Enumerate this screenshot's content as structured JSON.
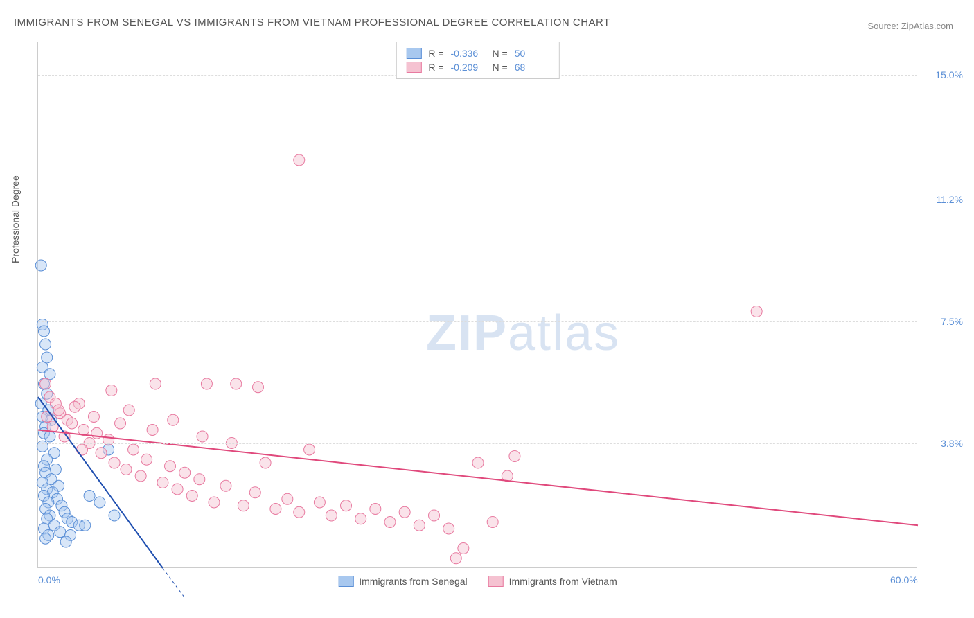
{
  "title": "IMMIGRANTS FROM SENEGAL VS IMMIGRANTS FROM VIETNAM PROFESSIONAL DEGREE CORRELATION CHART",
  "source": "Source: ZipAtlas.com",
  "y_axis_label": "Professional Degree",
  "watermark_zip": "ZIP",
  "watermark_atlas": "atlas",
  "chart": {
    "type": "scatter",
    "xlim": [
      0,
      60
    ],
    "ylim": [
      0,
      16
    ],
    "x_ticks": [
      {
        "value": 0,
        "label": "0.0%"
      },
      {
        "value": 60,
        "label": "60.0%"
      }
    ],
    "y_ticks": [
      {
        "value": 3.8,
        "label": "3.8%"
      },
      {
        "value": 7.5,
        "label": "7.5%"
      },
      {
        "value": 11.2,
        "label": "11.2%"
      },
      {
        "value": 15.0,
        "label": "15.0%"
      }
    ],
    "gridlines_y": [
      3.8,
      7.5,
      11.2,
      15.0
    ],
    "background_color": "#ffffff",
    "grid_color": "#dddddd",
    "marker_radius": 8,
    "marker_opacity": 0.45,
    "series": [
      {
        "name": "Immigrants from Senegal",
        "color_fill": "#a8c8ef",
        "color_stroke": "#5b8fd6",
        "line_color": "#1f4fb0",
        "line_width": 2,
        "R": "-0.336",
        "N": "50",
        "trend": {
          "x1": 0,
          "y1": 5.2,
          "x2": 8.5,
          "y2": 0
        },
        "trend_dashed": {
          "x1": 8.5,
          "y1": 0,
          "x2": 10,
          "y2": -0.9
        },
        "points": [
          [
            0.2,
            9.2
          ],
          [
            0.3,
            7.4
          ],
          [
            0.4,
            7.2
          ],
          [
            0.5,
            6.8
          ],
          [
            0.6,
            6.4
          ],
          [
            0.3,
            6.1
          ],
          [
            0.8,
            5.9
          ],
          [
            0.4,
            5.6
          ],
          [
            0.6,
            5.3
          ],
          [
            0.2,
            5.0
          ],
          [
            0.7,
            4.8
          ],
          [
            0.3,
            4.6
          ],
          [
            0.9,
            4.5
          ],
          [
            0.5,
            4.3
          ],
          [
            0.4,
            4.1
          ],
          [
            0.8,
            4.0
          ],
          [
            0.3,
            3.7
          ],
          [
            1.1,
            3.5
          ],
          [
            0.6,
            3.3
          ],
          [
            0.4,
            3.1
          ],
          [
            1.2,
            3.0
          ],
          [
            0.5,
            2.9
          ],
          [
            0.9,
            2.7
          ],
          [
            0.3,
            2.6
          ],
          [
            1.4,
            2.5
          ],
          [
            0.6,
            2.4
          ],
          [
            1.0,
            2.3
          ],
          [
            0.4,
            2.2
          ],
          [
            1.3,
            2.1
          ],
          [
            0.7,
            2.0
          ],
          [
            1.6,
            1.9
          ],
          [
            0.5,
            1.8
          ],
          [
            1.8,
            1.7
          ],
          [
            0.8,
            1.6
          ],
          [
            2.0,
            1.5
          ],
          [
            0.6,
            1.5
          ],
          [
            2.3,
            1.4
          ],
          [
            1.1,
            1.3
          ],
          [
            2.8,
            1.3
          ],
          [
            0.4,
            1.2
          ],
          [
            1.5,
            1.1
          ],
          [
            3.2,
            1.3
          ],
          [
            0.7,
            1.0
          ],
          [
            2.2,
            1.0
          ],
          [
            4.2,
            2.0
          ],
          [
            0.5,
            0.9
          ],
          [
            1.9,
            0.8
          ],
          [
            3.5,
            2.2
          ],
          [
            5.2,
            1.6
          ],
          [
            4.8,
            3.6
          ]
        ]
      },
      {
        "name": "Immigrants from Vietnam",
        "color_fill": "#f5c2d1",
        "color_stroke": "#e87aa0",
        "line_color": "#e0497c",
        "line_width": 2,
        "R": "-0.209",
        "N": "68",
        "trend": {
          "x1": 0,
          "y1": 4.2,
          "x2": 60,
          "y2": 1.3
        },
        "points": [
          [
            0.5,
            5.6
          ],
          [
            0.8,
            5.2
          ],
          [
            1.2,
            5.0
          ],
          [
            1.5,
            4.7
          ],
          [
            2.0,
            4.5
          ],
          [
            2.3,
            4.4
          ],
          [
            2.8,
            5.0
          ],
          [
            3.1,
            4.2
          ],
          [
            3.5,
            3.8
          ],
          [
            4.0,
            4.1
          ],
          [
            4.3,
            3.5
          ],
          [
            4.8,
            3.9
          ],
          [
            5.2,
            3.2
          ],
          [
            5.6,
            4.4
          ],
          [
            6.0,
            3.0
          ],
          [
            6.5,
            3.6
          ],
          [
            7.0,
            2.8
          ],
          [
            7.4,
            3.3
          ],
          [
            8.0,
            5.6
          ],
          [
            8.5,
            2.6
          ],
          [
            9.0,
            3.1
          ],
          [
            9.5,
            2.4
          ],
          [
            10.0,
            2.9
          ],
          [
            10.5,
            2.2
          ],
          [
            11.0,
            2.7
          ],
          [
            11.5,
            5.6
          ],
          [
            12.0,
            2.0
          ],
          [
            12.8,
            2.5
          ],
          [
            13.5,
            5.6
          ],
          [
            14.0,
            1.9
          ],
          [
            14.8,
            2.3
          ],
          [
            15.5,
            3.2
          ],
          [
            16.2,
            1.8
          ],
          [
            17.0,
            2.1
          ],
          [
            17.8,
            1.7
          ],
          [
            18.5,
            3.6
          ],
          [
            19.2,
            2.0
          ],
          [
            20.0,
            1.6
          ],
          [
            21.0,
            1.9
          ],
          [
            22.0,
            1.5
          ],
          [
            23.0,
            1.8
          ],
          [
            24.0,
            1.4
          ],
          [
            25.0,
            1.7
          ],
          [
            26.0,
            1.3
          ],
          [
            27.0,
            1.6
          ],
          [
            28.0,
            1.2
          ],
          [
            29.0,
            0.6
          ],
          [
            30.0,
            3.2
          ],
          [
            31.0,
            1.4
          ],
          [
            32.0,
            2.8
          ],
          [
            0.6,
            4.6
          ],
          [
            1.0,
            4.3
          ],
          [
            1.4,
            4.8
          ],
          [
            1.8,
            4.0
          ],
          [
            2.5,
            4.9
          ],
          [
            3.0,
            3.6
          ],
          [
            3.8,
            4.6
          ],
          [
            5.0,
            5.4
          ],
          [
            6.2,
            4.8
          ],
          [
            7.8,
            4.2
          ],
          [
            9.2,
            4.5
          ],
          [
            11.2,
            4.0
          ],
          [
            13.2,
            3.8
          ],
          [
            15.0,
            5.5
          ],
          [
            17.8,
            12.4
          ],
          [
            49.0,
            7.8
          ],
          [
            28.5,
            0.3
          ],
          [
            32.5,
            3.4
          ]
        ]
      }
    ]
  }
}
